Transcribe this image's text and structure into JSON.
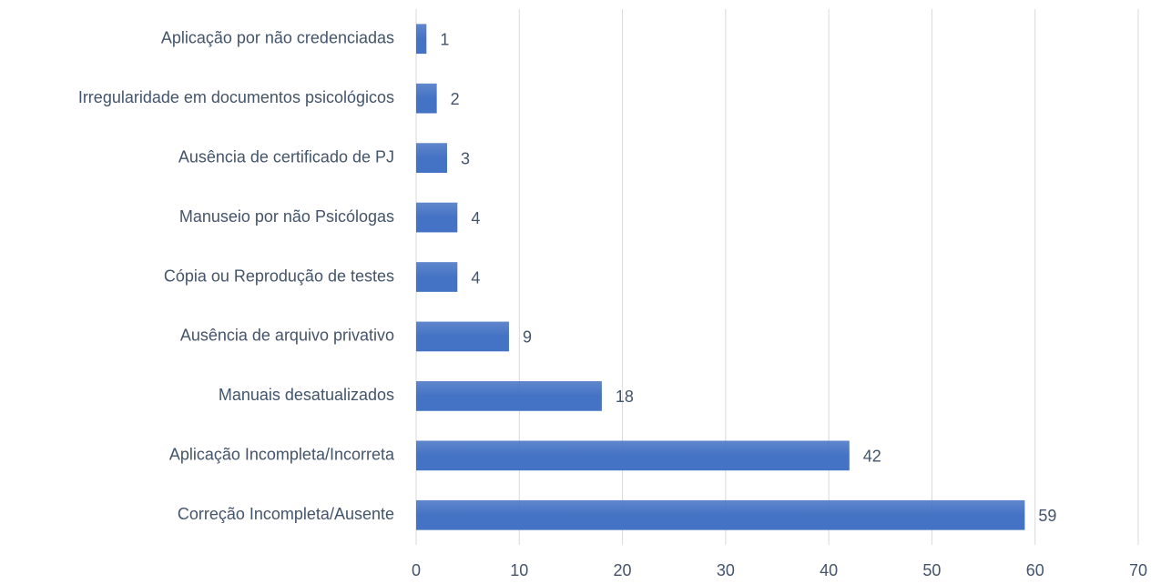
{
  "chart_data": {
    "type": "bar",
    "orientation": "horizontal",
    "categories": [
      "Aplicação por não credenciadas",
      "Irregularidade em documentos psicológicos",
      "Ausência de certificado de PJ",
      "Manuseio por não Psicólogas",
      "Cópia ou Reprodução de testes",
      "Ausência de arquivo privativo",
      "Manuais desatualizados",
      "Aplicação Incompleta/Incorreta",
      "Correção Incompleta/Ausente"
    ],
    "values": [
      1,
      2,
      3,
      4,
      4,
      9,
      18,
      42,
      59
    ],
    "color": "#4472c4",
    "xlim": [
      0,
      70
    ],
    "xticks": [
      0,
      10,
      20,
      30,
      40,
      50,
      60,
      70
    ],
    "grid": true
  }
}
